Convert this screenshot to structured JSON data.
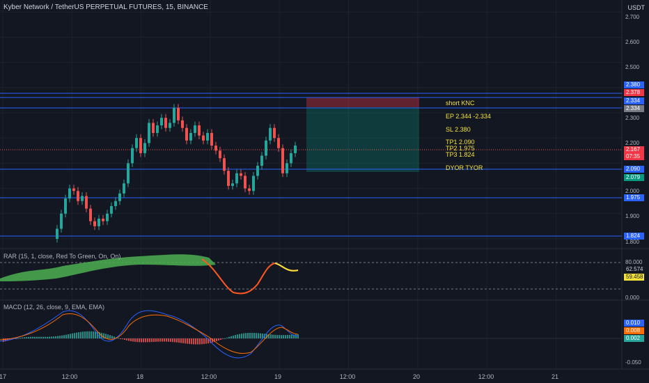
{
  "header": {
    "title": "Kyber Network / TetherUS PERPETUAL FUTURES, 15, BINANCE",
    "currency": "USDT"
  },
  "price_axis": {
    "ticks": [
      "2.700",
      "2.600",
      "2.500",
      "2.300",
      "2.200",
      "2.000",
      "1.900",
      "1.800"
    ],
    "tags": [
      {
        "text": "2.380",
        "color": "#2962ff"
      },
      {
        "text": "2.378",
        "color": "#f23645"
      },
      {
        "text": "2.334",
        "color": "#2962ff"
      },
      {
        "text": "2.334",
        "color": "#787b86"
      },
      {
        "text": "2.167",
        "color": "#f23645"
      },
      {
        "text": "07:35",
        "color": "#f23645"
      },
      {
        "text": "2.090",
        "color": "#2962ff"
      },
      {
        "text": "2.079",
        "color": "#089981"
      },
      {
        "text": "1.975",
        "color": "#2962ff"
      },
      {
        "text": "1.824",
        "color": "#2962ff"
      }
    ]
  },
  "annotations": {
    "title": "short KNC",
    "entry": "EP 2.344 -2.334",
    "stop": "SL 2.380",
    "tp1": "TP1 2.090",
    "tp2": "TP2 1.975",
    "tp3": "TP3 1.824",
    "disclaimer": "DYOR TYOR"
  },
  "rar": {
    "label": "RAR (15, 1, close, Red To Green, On, On)",
    "ticks": [
      "80.000",
      "0.000"
    ],
    "tags": [
      {
        "text": "62.574",
        "color": "#131722",
        "fg": "#d1d4dc"
      },
      {
        "text": "59.458",
        "color": "#f5e33b",
        "fg": "#131722"
      }
    ]
  },
  "macd": {
    "label": "MACD (12, 26, close, 9, EMA, EMA)",
    "ticks": [
      "-0.050"
    ],
    "tags": [
      {
        "text": "0.010",
        "color": "#2962ff",
        "fg": "#ffffff"
      },
      {
        "text": "0.008",
        "color": "#ff6d00",
        "fg": "#ffffff"
      },
      {
        "text": "0.002",
        "color": "#26a69a",
        "fg": "#ffffff"
      }
    ]
  },
  "time_axis": [
    "17",
    "12:00",
    "18",
    "12:00",
    "19",
    "12:00",
    "20",
    "12:00",
    "21"
  ],
  "colors": {
    "up": "#26a69a",
    "down": "#ef5350",
    "level": "#2962ff"
  }
}
